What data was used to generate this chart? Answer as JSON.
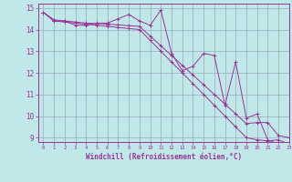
{
  "xlabel": "Windchill (Refroidissement éolien,°C)",
  "bg_color": "#c0e8e8",
  "line_color": "#993399",
  "grid_color": "#99aabb",
  "xlim": [
    -0.5,
    23
  ],
  "ylim": [
    8.8,
    15.2
  ],
  "yticks": [
    9,
    10,
    11,
    12,
    13,
    14,
    15
  ],
  "xticks": [
    0,
    1,
    2,
    3,
    4,
    5,
    6,
    7,
    8,
    9,
    10,
    11,
    12,
    13,
    14,
    15,
    16,
    17,
    18,
    19,
    20,
    21,
    22,
    23
  ],
  "series": [
    [
      14.8,
      14.4,
      14.4,
      14.2,
      14.2,
      14.3,
      14.3,
      14.5,
      14.7,
      14.4,
      14.2,
      14.9,
      12.9,
      12.1,
      12.3,
      12.9,
      12.8,
      10.5,
      12.5,
      9.9,
      10.1,
      8.9,
      8.7,
      8.6
    ],
    [
      14.8,
      14.45,
      14.4,
      14.35,
      14.3,
      14.28,
      14.25,
      14.22,
      14.18,
      14.15,
      13.7,
      13.25,
      12.8,
      12.35,
      11.9,
      11.45,
      11.0,
      10.55,
      10.1,
      9.65,
      9.7,
      9.7,
      9.1,
      9.0
    ],
    [
      14.8,
      14.4,
      14.35,
      14.3,
      14.25,
      14.2,
      14.15,
      14.1,
      14.05,
      14.0,
      13.5,
      13.0,
      12.5,
      12.0,
      11.5,
      11.0,
      10.5,
      10.0,
      9.5,
      9.0,
      8.9,
      8.85,
      8.9,
      8.7
    ]
  ]
}
